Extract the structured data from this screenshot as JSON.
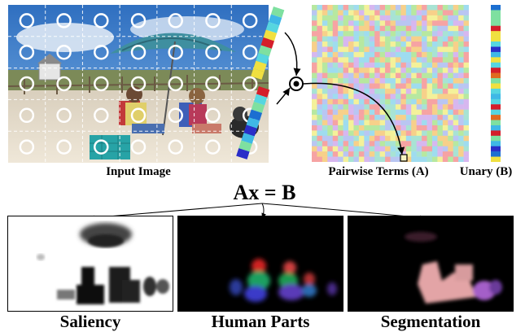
{
  "captions": {
    "input": "Input Image",
    "pairwise": "Pairwise Terms (A)",
    "unary": "Unary (B)",
    "equation": "Ax = B",
    "saliency": "Saliency",
    "human_parts": "Human Parts",
    "segmentation": "Segmentation"
  },
  "colors": {
    "palette": [
      "#f6a3a3",
      "#f7d08a",
      "#f4f19a",
      "#b7e8a0",
      "#9fdcef",
      "#b9c6f2",
      "#d7b7ef",
      "#a8e3d4"
    ],
    "unary_palette": [
      "#1c6fd1",
      "#3fb8e6",
      "#7ee0a0",
      "#f0e040",
      "#e06a20",
      "#d41e2a",
      "#2a2ec8",
      "#56d6e0"
    ],
    "segment_pink": "#e3a4a6",
    "segment_purple": "#a45ec8"
  },
  "circle_grid": {
    "rows": 5,
    "cols": 7
  },
  "heatmap_grid": 30
}
